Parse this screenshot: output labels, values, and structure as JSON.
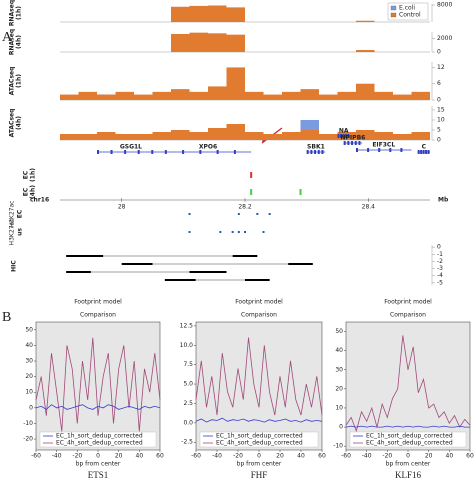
{
  "panel_a": {
    "letter": "A",
    "xlim": [
      27.9,
      28.5
    ],
    "bins": [
      27.9,
      27.93,
      27.96,
      27.99,
      28.02,
      28.05,
      28.08,
      28.11,
      28.14,
      28.17,
      28.2,
      28.23,
      28.26,
      28.29,
      28.32,
      28.35,
      28.38,
      28.41,
      28.44,
      28.47,
      28.5
    ],
    "tracks": [
      {
        "label": "RNAseq",
        "sublabel": "(1h)",
        "ylim": [
          0,
          8500
        ],
        "yticks": [
          8000
        ],
        "series": [
          {
            "name": "E.coli",
            "color": "#7b9be0",
            "values": [
              0,
              0,
              0,
              0,
              0,
              0,
              6800,
              7100,
              7300,
              6500,
              0,
              0,
              0,
              0,
              0,
              0,
              400,
              0,
              0,
              0
            ]
          },
          {
            "name": "Control",
            "color": "#e07b30",
            "values": [
              0,
              0,
              0,
              0,
              0,
              0,
              7200,
              7600,
              7800,
              6900,
              0,
              0,
              0,
              0,
              0,
              0,
              600,
              0,
              0,
              0
            ]
          }
        ]
      },
      {
        "label": "RNAseq",
        "sublabel": "(4h)",
        "ylim": [
          0,
          3000
        ],
        "yticks": [
          0,
          2000
        ],
        "series": [
          {
            "name": "E.coli",
            "color": "#7b9be0",
            "values": [
              0,
              0,
              0,
              0,
              0,
              0,
              2500,
              2700,
              2600,
              2400,
              0,
              0,
              0,
              0,
              0,
              0,
              200,
              0,
              0,
              0
            ]
          },
          {
            "name": "Control",
            "color": "#e07b30",
            "values": [
              0,
              0,
              0,
              0,
              0,
              0,
              2700,
              2900,
              2800,
              2600,
              0,
              0,
              0,
              0,
              0,
              0,
              300,
              0,
              0,
              0
            ]
          }
        ]
      },
      {
        "label": "ATACseq",
        "sublabel": "(1h)",
        "ylim": [
          0,
          14
        ],
        "yticks": [
          0,
          6,
          12
        ],
        "series": [
          {
            "name": "E.coli",
            "color": "#7b9be0",
            "values": [
              1,
              1,
              2,
              1,
              1,
              2,
              2,
              1,
              2,
              3,
              1,
              1,
              2,
              2,
              1,
              1,
              2,
              1,
              1,
              1
            ]
          },
          {
            "name": "Control",
            "color": "#e07b30",
            "values": [
              2,
              3,
              2,
              3,
              2,
              3,
              4,
              3,
              5,
              12,
              3,
              2,
              3,
              4,
              2,
              3,
              6,
              3,
              2,
              3
            ]
          }
        ]
      },
      {
        "label": "ATACseq",
        "sublabel": "(4h)",
        "ylim": [
          0,
          17
        ],
        "yticks": [
          0,
          5,
          10,
          15
        ],
        "series": [
          {
            "name": "E.coli",
            "color": "#7b9be0",
            "values": [
              1,
              2,
              1,
              2,
              1,
              1,
              2,
              2,
              1,
              2,
              1,
              2,
              1,
              10,
              1,
              2,
              1,
              2,
              1,
              1
            ]
          },
          {
            "name": "Control",
            "color": "#e07b30",
            "values": [
              3,
              3,
              4,
              3,
              3,
              4,
              5,
              4,
              6,
              8,
              4,
              3,
              4,
              5,
              3,
              4,
              5,
              4,
              3,
              4
            ]
          }
        ]
      }
    ],
    "genes": [
      {
        "label": "GSG1L",
        "start": 27.96,
        "end": 28.07
      },
      {
        "label": "XPO6",
        "start": 28.07,
        "end": 28.21
      },
      {
        "label": "SBK1",
        "start": 28.3,
        "end": 28.33
      },
      {
        "label": "NA",
        "start": 28.35,
        "end": 28.37
      },
      {
        "label": "NPIPB6",
        "start": 28.36,
        "end": 28.39
      },
      {
        "label": "EIF3CL",
        "start": 28.38,
        "end": 28.47
      },
      {
        "label": "C",
        "start": 28.48,
        "end": 28.5
      }
    ],
    "ec_tracks": [
      {
        "label": "EC",
        "sublabel": "(1h)",
        "marks": [
          {
            "pos": 28.21,
            "color": "#e03030"
          }
        ]
      },
      {
        "label": "EC",
        "sublabel": "(4h)",
        "marks": [
          {
            "pos": 28.21,
            "color": "#40d040"
          },
          {
            "pos": 28.29,
            "color": "#40d040"
          }
        ]
      }
    ],
    "axis": {
      "chrom": "chr16",
      "ticks": [
        28,
        28.2,
        28.4
      ],
      "unit": "Mb"
    },
    "marks_rows": [
      {
        "label": "H3K27ac",
        "sublabel": "EC",
        "positions": [
          28.11,
          28.19,
          28.22,
          28.24
        ]
      },
      {
        "label": "H3K27ac",
        "sublabel": "us",
        "positions": [
          28.11,
          28.16,
          28.18,
          28.19,
          28.2,
          28.23
        ]
      }
    ],
    "hic": {
      "label": "HIC",
      "ylim": [
        -5.3,
        0.3
      ],
      "yticks": [
        0,
        -1,
        -2,
        -3,
        -4,
        -5
      ],
      "loops": [
        [
          27.91,
          27.97,
          28.18,
          28.22
        ],
        [
          28.0,
          28.05,
          28.27,
          28.31
        ],
        [
          27.91,
          27.95,
          28.11,
          28.17
        ],
        [
          28.07,
          28.12,
          28.2,
          28.24
        ]
      ]
    }
  },
  "panel_b_letter": "B",
  "chart_data": [
    {
      "type": "line",
      "title": "Footprint model",
      "subtitle": "Comparison",
      "xlabel": "bp from center",
      "caption": "ETS1",
      "xlim": [
        -60,
        60
      ],
      "ylim": [
        -27,
        55
      ],
      "xticks": [
        -60,
        -40,
        -20,
        0,
        20,
        40,
        60
      ],
      "yticks": [
        -20,
        -10,
        0,
        10,
        20,
        30,
        40,
        50
      ],
      "x": [
        -60,
        -55,
        -50,
        -45,
        -40,
        -35,
        -30,
        -25,
        -20,
        -15,
        -10,
        -5,
        0,
        5,
        10,
        15,
        20,
        25,
        30,
        35,
        40,
        45,
        50,
        55,
        60
      ],
      "series": [
        {
          "name": "EC_1h_sort_dedup_corrected",
          "color": "#3a3ad0",
          "values": [
            0,
            1,
            -1,
            2,
            0,
            1,
            -1,
            0,
            1,
            2,
            0,
            -1,
            1,
            0,
            2,
            1,
            -1,
            0,
            1,
            0,
            -1,
            1,
            0,
            1,
            0
          ]
        },
        {
          "name": "EC_4h_sort_dedup_corrected",
          "color": "#a04a7a",
          "values": [
            5,
            20,
            -5,
            35,
            10,
            -15,
            40,
            25,
            -10,
            30,
            5,
            45,
            -5,
            20,
            35,
            -10,
            25,
            40,
            0,
            30,
            -15,
            25,
            10,
            35,
            5
          ]
        }
      ]
    },
    {
      "type": "line",
      "title": "Footprint model",
      "subtitle": "Comparison",
      "xlabel": "bp from center",
      "caption": "FHF",
      "xlim": [
        -60,
        60
      ],
      "ylim": [
        -3.5,
        13
      ],
      "xticks": [
        -60,
        -40,
        -20,
        0,
        20,
        40,
        60
      ],
      "yticks": [
        {
          "value": -2.5,
          "label": "-2.5"
        },
        {
          "value": 0,
          "label": "0.0"
        },
        {
          "value": 2.5,
          "label": "2.5"
        },
        {
          "value": 5,
          "label": "5.0"
        },
        {
          "value": 7.5,
          "label": "7.5"
        },
        {
          "value": 10,
          "label": "10.0"
        },
        {
          "value": 12.5,
          "label": "12.5"
        }
      ],
      "x": [
        -60,
        -55,
        -50,
        -45,
        -40,
        -35,
        -30,
        -25,
        -20,
        -15,
        -10,
        -5,
        0,
        5,
        10,
        15,
        20,
        25,
        30,
        35,
        40,
        45,
        50,
        55,
        60
      ],
      "series": [
        {
          "name": "EC_1h_sort_dedup_corrected",
          "color": "#3a3ad0",
          "values": [
            0.2,
            0.5,
            0.1,
            0.4,
            0.3,
            0.6,
            0.2,
            0.4,
            0.3,
            0.5,
            0.2,
            0.4,
            0.3,
            0.1,
            0.4,
            0.2,
            0.3,
            0.5,
            0.2,
            0.3,
            0.1,
            0.4,
            0.2,
            0.3,
            0.2
          ]
        },
        {
          "name": "EC_4h_sort_dedup_corrected",
          "color": "#a04a7a",
          "values": [
            3,
            8,
            2,
            6,
            1,
            9,
            4,
            2,
            7,
            3,
            11,
            5,
            2,
            10,
            4,
            1,
            6,
            2,
            8,
            3,
            1,
            5,
            2,
            6,
            1
          ]
        }
      ]
    },
    {
      "type": "line",
      "title": "Footprint model",
      "subtitle": "Comparison",
      "xlabel": "bp from center",
      "caption": "KLF16",
      "xlim": [
        -60,
        60
      ],
      "ylim": [
        -12,
        55
      ],
      "xticks": [
        -60,
        -40,
        -20,
        0,
        20,
        40,
        60
      ],
      "yticks": [
        -10,
        0,
        10,
        20,
        30,
        40,
        50
      ],
      "x": [
        -60,
        -55,
        -50,
        -45,
        -40,
        -35,
        -30,
        -25,
        -20,
        -15,
        -10,
        -5,
        0,
        5,
        10,
        15,
        20,
        25,
        30,
        35,
        40,
        45,
        50,
        55,
        60
      ],
      "series": [
        {
          "name": "EC_1h_sort_dedup_corrected",
          "color": "#3a3ad0",
          "values": [
            0,
            0.5,
            0,
            0.5,
            0,
            0.5,
            0,
            0,
            0.5,
            0,
            0.5,
            0,
            0.5,
            0,
            0.5,
            0,
            0,
            0.5,
            0,
            0.5,
            0,
            0,
            0.5,
            0,
            0
          ]
        },
        {
          "name": "EC_4h_sort_dedup_corrected",
          "color": "#a04a7a",
          "values": [
            1,
            5,
            -2,
            8,
            3,
            10,
            0,
            12,
            5,
            15,
            20,
            48,
            30,
            42,
            18,
            25,
            10,
            12,
            5,
            8,
            2,
            6,
            0,
            4,
            1
          ]
        }
      ]
    }
  ]
}
